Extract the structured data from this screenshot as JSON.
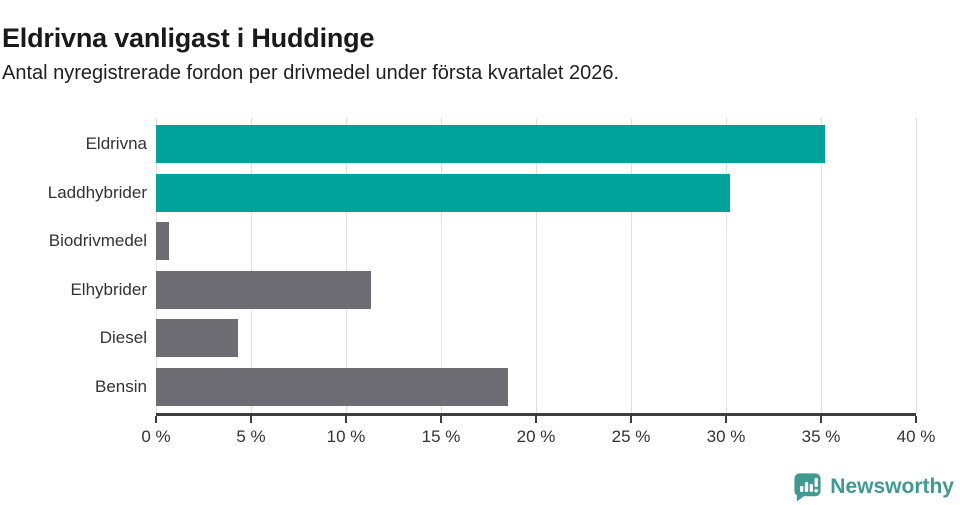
{
  "chart_data": {
    "type": "bar",
    "orientation": "horizontal",
    "title": "Eldrivna vanligast i Huddinge",
    "subtitle": "Antal nyregistrerade fordon per drivmedel under första kvartalet 2026.",
    "categories": [
      "Eldrivna",
      "Laddhybrider",
      "Biodrivmedel",
      "Elhybrider",
      "Diesel",
      "Bensin"
    ],
    "values": [
      35.2,
      30.2,
      0.7,
      11.3,
      4.3,
      18.5
    ],
    "unit": "%",
    "xlabel": "",
    "ylabel": "",
    "xlim": [
      0,
      40
    ],
    "x_ticks": [
      "0 %",
      "5 %",
      "10 %",
      "15 %",
      "20 %",
      "25 %",
      "30 %",
      "35 %",
      "40 %"
    ],
    "grid": true,
    "legend": false,
    "bar_colors": [
      "#00a39b",
      "#00a39b",
      "#6c6c72",
      "#6c6c72",
      "#6c6c72",
      "#6c6c72"
    ]
  },
  "footer": {
    "brand": "Newsworthy"
  },
  "colors": {
    "accent_teal": "#00a39b",
    "neutral_gray": "#6c6c72",
    "logo_teal": "#3f9a91",
    "axis_line": "#3d3d3d",
    "gridline": "#e1e1e3",
    "title_text": "#1a1a1a"
  }
}
